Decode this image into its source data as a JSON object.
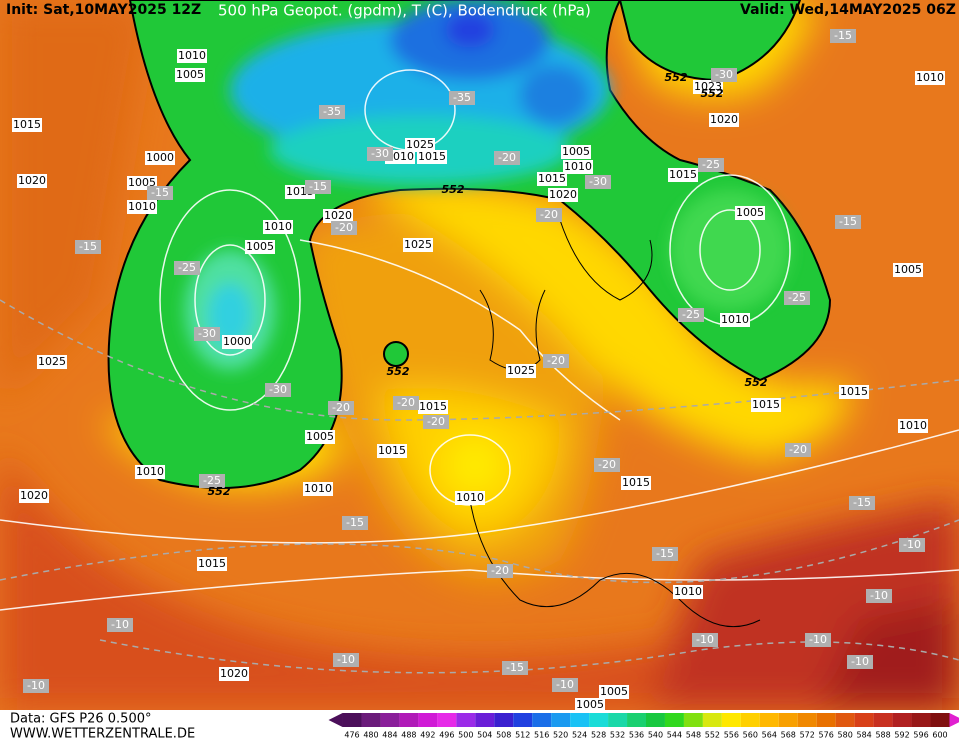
{
  "header": {
    "init": "Init: Sat,10MAY2025 12Z",
    "title": "500 hPa Geopot. (gpdm), T (C), Bodendruck (hPa)",
    "valid": "Valid: Wed,14MAY2025 06Z"
  },
  "footer": {
    "data_source": "Data: GFS P26 0.500°",
    "website": "WWW.WETTERZENTRALE.DE"
  },
  "map": {
    "isobar_labels": [
      1010,
      1005,
      1015,
      1000,
      1020,
      1005,
      1010,
      1015,
      1010,
      1005,
      1020,
      1025,
      1025,
      1010,
      1015,
      1005,
      1010,
      1015,
      1020,
      1015,
      1020,
      1023,
      1010,
      1005,
      1005,
      1010,
      1025,
      1000,
      1025,
      1015,
      1015,
      1015,
      1005,
      1015,
      1010,
      1010,
      1010,
      1015,
      1010,
      1020,
      1015,
      1010,
      1020,
      1005,
      1005
    ],
    "temperature_labels": [
      -15,
      -35,
      -35,
      -30,
      -30,
      -20,
      -30,
      -25,
      -15,
      -15,
      -15,
      -25,
      -20,
      -20,
      -15,
      -25,
      -25,
      -30,
      -30,
      -20,
      -20,
      -20,
      -20,
      -20,
      -20,
      -25,
      -15,
      -15,
      -10,
      -15,
      -20,
      -10,
      -10,
      -10,
      -10,
      -10,
      -10,
      -10,
      -10,
      -15
    ],
    "height_labels": [
      552,
      552,
      552,
      552,
      552,
      552
    ]
  },
  "colorbar": {
    "ticks": [
      476,
      480,
      484,
      488,
      492,
      496,
      500,
      504,
      508,
      512,
      516,
      520,
      524,
      528,
      532,
      536,
      540,
      544,
      548,
      552,
      556,
      560,
      564,
      568,
      572,
      576,
      580,
      584,
      588,
      592,
      596,
      600
    ],
    "colors": [
      "#4b0f5a",
      "#6a1b7a",
      "#8a1f9a",
      "#b01ab8",
      "#d01ad6",
      "#e62ae8",
      "#9b2be8",
      "#6a1ed8",
      "#3a20d0",
      "#2040e0",
      "#1a6ee8",
      "#1a9af0",
      "#1ac2f5",
      "#1adcd8",
      "#1ad8a8",
      "#1ad070",
      "#18c840",
      "#30d81e",
      "#80e010",
      "#d8e810",
      "#ffe800",
      "#ffd000",
      "#ffb800",
      "#f8a000",
      "#f08800",
      "#e87000",
      "#e05810",
      "#d84018",
      "#c83020",
      "#b02020",
      "#981818",
      "#801010"
    ]
  }
}
